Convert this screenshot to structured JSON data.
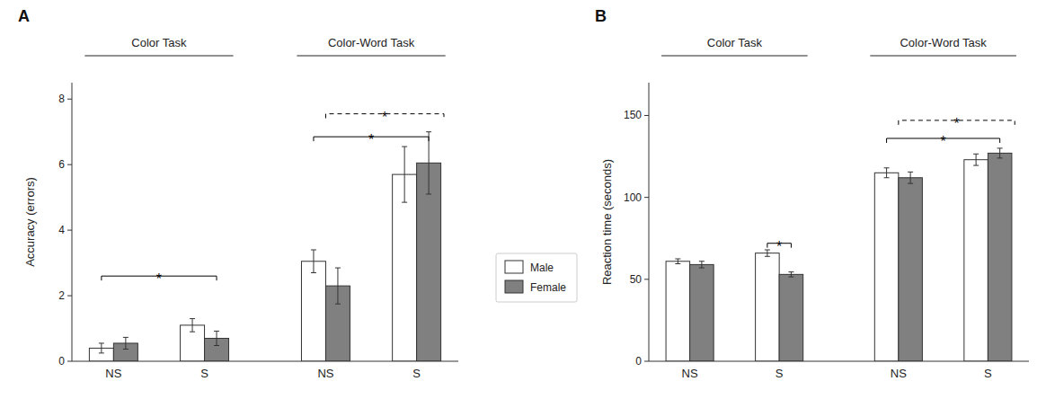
{
  "chart_data": [
    {
      "type": "bar",
      "title": "A",
      "y_label": "Accuracy (errors)",
      "categories": [
        "NS",
        "S",
        "NS",
        "S"
      ],
      "series": [
        {
          "name": "Male",
          "color": "white",
          "values": [
            0.4,
            1.1,
            3.05,
            5.7
          ],
          "errors": [
            0.15,
            0.2,
            0.35,
            0.85
          ]
        },
        {
          "name": "Female",
          "color": "#808080",
          "values": [
            0.55,
            0.7,
            2.3,
            6.05
          ],
          "errors": [
            0.18,
            0.22,
            0.55,
            0.95
          ]
        }
      ],
      "ylim": [
        0,
        8.5
      ],
      "yticks": [
        0,
        2,
        4,
        6,
        8
      ],
      "grid": false,
      "annotations": [
        {
          "text": "Color Task",
          "from": 0,
          "to": 1
        },
        {
          "text": "Color-Word Task",
          "from": 2,
          "to": 3
        },
        {
          "text": "*",
          "from": 0,
          "to": 1,
          "y": 2.6,
          "line_style": "solid"
        },
        {
          "text": "*",
          "from": 2,
          "to": 3,
          "y": 6.85,
          "line_style": "solid"
        },
        {
          "text": "*",
          "from": 2,
          "to": 3,
          "y": 7.55,
          "line_style": "dashed"
        }
      ]
    },
    {
      "type": "bar",
      "title": "B",
      "y_label": "Reaction time (seconds)",
      "categories": [
        "NS",
        "S",
        "NS",
        "S"
      ],
      "series": [
        {
          "color": "white",
          "values": [
            61,
            66,
            115,
            123
          ],
          "errors": [
            1.5,
            2.0,
            3.0,
            3.5
          ]
        },
        {
          "color": "#808080",
          "values": [
            59,
            53,
            112,
            127
          ],
          "errors": [
            2.0,
            1.5,
            3.5,
            3.0
          ]
        }
      ],
      "ylim": [
        0,
        170
      ],
      "yticks": [
        0,
        50,
        100,
        150
      ],
      "grid": false,
      "annotations": [
        {
          "text": "Color Task",
          "from": 0,
          "to": 1
        },
        {
          "text": "Color-Word Task",
          "from": 2,
          "to": 3
        },
        {
          "text": "*",
          "from": 1,
          "to": 1,
          "y": 72,
          "line_style": "solid"
        },
        {
          "text": "*",
          "from": 2,
          "to": 3,
          "y": 136,
          "line_style": "solid"
        },
        {
          "text": "*",
          "from": 2,
          "to": 3,
          "y": 147,
          "line_style": "dashed"
        }
      ]
    }
  ]
}
